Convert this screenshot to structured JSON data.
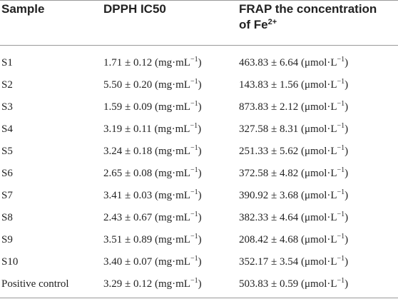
{
  "header": {
    "sample": "Sample",
    "dpph": "DPPH IC50",
    "frap_line1": "FRAP the concentration",
    "frap_line2": "of Fe",
    "frap_sup": "2+"
  },
  "units": {
    "dpph_unit": "(mg·mL",
    "dpph_sup": "−1",
    "dpph_close": ")",
    "frap_unit": "(μmol·L",
    "frap_sup": "−1",
    "frap_close": ")"
  },
  "rows": [
    {
      "sample": "S1",
      "dpph": "1.71 ± 0.12",
      "frap": "463.83 ± 6.64"
    },
    {
      "sample": "S2",
      "dpph": "5.50 ± 0.20",
      "frap": "143.83 ± 1.56"
    },
    {
      "sample": "S3",
      "dpph": "1.59 ± 0.09",
      "frap": "873.83 ± 2.12"
    },
    {
      "sample": "S4",
      "dpph": "3.19 ± 0.11",
      "frap": "327.58 ± 8.31"
    },
    {
      "sample": "S5",
      "dpph": "3.24 ± 0.18",
      "frap": "251.33 ± 5.62"
    },
    {
      "sample": "S6",
      "dpph": "2.65 ± 0.08",
      "frap": "372.58 ± 4.82"
    },
    {
      "sample": "S7",
      "dpph": "3.41 ± 0.03",
      "frap": "390.92 ± 3.68"
    },
    {
      "sample": "S8",
      "dpph": "2.43 ± 0.67",
      "frap": "382.33 ± 4.64"
    },
    {
      "sample": "S9",
      "dpph": "3.51 ± 0.89",
      "frap": "208.42 ± 4.68"
    },
    {
      "sample": "S10",
      "dpph": "3.40 ± 0.07",
      "frap": "352.17 ± 3.54"
    },
    {
      "sample": "Positive control",
      "dpph": "3.29 ± 0.12",
      "frap": "503.83 ± 0.59"
    }
  ]
}
